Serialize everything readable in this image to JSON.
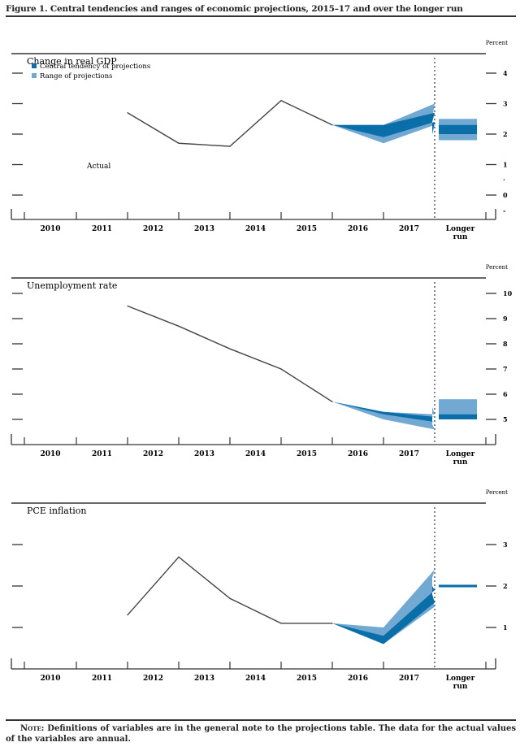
{
  "figure_title": "Figure 1. Central tendencies and ranges of economic projections, 2015–17 and over the longer run",
  "note": {
    "label": "Note:",
    "text": "Definitions of variables are in the general note to the projections table. The data for the actual values of the variables are annual."
  },
  "colors": {
    "central_tendency": "#0a6ea8",
    "range": "#72a9d2",
    "actual_line": "#444444",
    "axis": "#333333"
  },
  "legend": [
    {
      "label": "Central tendency of projections",
      "color": "#0a6ea8"
    },
    {
      "label": "Range of projections",
      "color": "#72a9d2"
    }
  ],
  "chart_data": [
    {
      "type": "area",
      "title": "Change in real GDP",
      "unit_label": "Percent",
      "categories": [
        "2010",
        "2011",
        "2012",
        "2013",
        "2014",
        "2015",
        "2016",
        "2017",
        "Longer run"
      ],
      "y_ticks": [
        0,
        1,
        2,
        3,
        4
      ],
      "ylim": [
        -0.5,
        4.5
      ],
      "annotation": "Actual",
      "actual": {
        "x": [
          "2011",
          "2012",
          "2013",
          "2014",
          "2015"
        ],
        "values": [
          2.7,
          1.7,
          1.6,
          3.1,
          2.3
        ]
      },
      "central_tendency": {
        "x": [
          "2015",
          "2016",
          "2017"
        ],
        "low": [
          2.3,
          1.9,
          2.4
        ],
        "high": [
          2.3,
          2.3,
          2.7
        ],
        "low_end": [
          2.0
        ],
        "high_end": [
          2.4
        ]
      },
      "range_projections": {
        "x": [
          "2015",
          "2016",
          "2017"
        ],
        "low": [
          2.3,
          1.7,
          2.3
        ],
        "high": [
          2.3,
          2.3,
          3.0
        ],
        "low_end": [
          2.0
        ],
        "high_end": [
          2.5
        ]
      },
      "longer_run": {
        "central_low": 2.0,
        "central_high": 2.3,
        "range_low": 1.8,
        "range_high": 2.5
      },
      "end_2017": {
        "central_low": 2.0,
        "central_high": 2.4,
        "range_low": 2.0,
        "range_high": 2.5
      }
    },
    {
      "type": "area",
      "title": "Unemployment rate",
      "unit_label": "Percent",
      "categories": [
        "2010",
        "2011",
        "2012",
        "2013",
        "2014",
        "2015",
        "2016",
        "2017",
        "Longer run"
      ],
      "y_ticks": [
        5,
        6,
        7,
        8,
        9,
        10
      ],
      "ylim": [
        4.0,
        10.5
      ],
      "actual": {
        "x": [
          "2011",
          "2012",
          "2013",
          "2014",
          "2015"
        ],
        "values": [
          9.5,
          8.7,
          7.8,
          7.0,
          5.7
        ]
      },
      "central_tendency": {
        "x": [
          "2015",
          "2016",
          "2017"
        ],
        "low": [
          5.7,
          5.2,
          4.9
        ],
        "high": [
          5.7,
          5.3,
          5.1
        ]
      },
      "range_projections": {
        "x": [
          "2015",
          "2016",
          "2017"
        ],
        "low": [
          5.7,
          5.0,
          4.6
        ],
        "high": [
          5.7,
          5.3,
          5.2
        ]
      },
      "end_2017": {
        "central_low": 4.9,
        "central_high": 5.1,
        "range_low": 4.8,
        "range_high": 5.5
      },
      "longer_run": {
        "central_low": 5.0,
        "central_high": 5.2,
        "range_low": 5.0,
        "range_high": 5.8
      }
    },
    {
      "type": "area",
      "title": "PCE inflation",
      "unit_label": "Percent",
      "categories": [
        "2010",
        "2011",
        "2012",
        "2013",
        "2014",
        "2015",
        "2016",
        "2017",
        "Longer run"
      ],
      "y_ticks": [
        1,
        2,
        3
      ],
      "ylim": [
        0.0,
        3.5
      ],
      "actual": {
        "x": [
          "2011",
          "2012",
          "2013",
          "2014",
          "2015"
        ],
        "values": [
          1.3,
          2.7,
          1.7,
          1.1,
          1.1
        ]
      },
      "central_tendency": {
        "x": [
          "2015",
          "2016",
          "2017"
        ],
        "low": [
          1.1,
          0.6,
          1.6
        ],
        "high": [
          1.1,
          0.8,
          1.9
        ]
      },
      "range_projections": {
        "x": [
          "2015",
          "2016",
          "2017"
        ],
        "low": [
          1.1,
          0.6,
          1.5
        ],
        "high": [
          1.1,
          1.0,
          2.4
        ]
      },
      "end_2017": {
        "central_low": 1.8,
        "central_high": 2.0,
        "range_low": 1.7,
        "range_high": 2.2
      },
      "longer_run": {
        "central_low": 1.97,
        "central_high": 2.03,
        "range_low": 1.97,
        "range_high": 2.03
      }
    }
  ]
}
